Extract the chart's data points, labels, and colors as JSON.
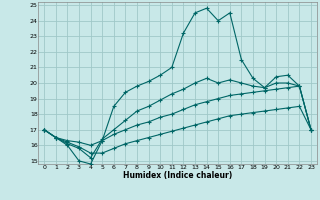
{
  "xlabel": "Humidex (Indice chaleur)",
  "xlim": [
    0,
    23
  ],
  "ylim": [
    15,
    25
  ],
  "yticks": [
    15,
    16,
    17,
    18,
    19,
    20,
    21,
    22,
    23,
    24,
    25
  ],
  "xticks": [
    0,
    1,
    2,
    3,
    4,
    5,
    6,
    7,
    8,
    9,
    10,
    11,
    12,
    13,
    14,
    15,
    16,
    17,
    18,
    19,
    20,
    21,
    22,
    23
  ],
  "bg_color": "#c8e8e8",
  "grid_color": "#a0c8c8",
  "line_color": "#006666",
  "lines": [
    {
      "x": [
        0,
        1,
        2,
        3,
        4,
        5,
        6,
        7,
        8,
        9,
        10,
        11,
        12,
        13,
        14,
        15,
        16,
        17,
        18,
        19,
        20,
        21,
        22,
        23
      ],
      "y": [
        17,
        16.5,
        16.0,
        15.0,
        14.8,
        16.3,
        18.5,
        19.4,
        19.8,
        20.1,
        20.5,
        21.0,
        23.2,
        24.5,
        24.8,
        24.0,
        24.5,
        21.5,
        20.3,
        19.7,
        20.4,
        20.5,
        19.8,
        17.0
      ]
    },
    {
      "x": [
        0,
        1,
        2,
        3,
        4,
        5,
        6,
        7,
        8,
        9,
        10,
        11,
        12,
        13,
        14,
        15,
        16,
        17,
        18,
        19,
        20,
        21,
        22,
        23
      ],
      "y": [
        17,
        16.5,
        16.1,
        15.8,
        15.2,
        16.4,
        17.0,
        17.6,
        18.2,
        18.5,
        18.9,
        19.3,
        19.6,
        20.0,
        20.3,
        20.0,
        20.2,
        20.0,
        19.8,
        19.7,
        20.0,
        20.0,
        19.8,
        17.0
      ]
    },
    {
      "x": [
        0,
        1,
        2,
        3,
        4,
        5,
        6,
        7,
        8,
        9,
        10,
        11,
        12,
        13,
        14,
        15,
        16,
        17,
        18,
        19,
        20,
        21,
        22,
        23
      ],
      "y": [
        17,
        16.5,
        16.3,
        16.2,
        16.0,
        16.3,
        16.7,
        17.0,
        17.3,
        17.5,
        17.8,
        18.0,
        18.3,
        18.6,
        18.8,
        19.0,
        19.2,
        19.3,
        19.4,
        19.5,
        19.6,
        19.7,
        19.8,
        17.0
      ]
    },
    {
      "x": [
        0,
        1,
        2,
        3,
        4,
        5,
        6,
        7,
        8,
        9,
        10,
        11,
        12,
        13,
        14,
        15,
        16,
        17,
        18,
        19,
        20,
        21,
        22,
        23
      ],
      "y": [
        17,
        16.5,
        16.2,
        15.9,
        15.5,
        15.5,
        15.8,
        16.1,
        16.3,
        16.5,
        16.7,
        16.9,
        17.1,
        17.3,
        17.5,
        17.7,
        17.9,
        18.0,
        18.1,
        18.2,
        18.3,
        18.4,
        18.5,
        17.0
      ]
    }
  ]
}
